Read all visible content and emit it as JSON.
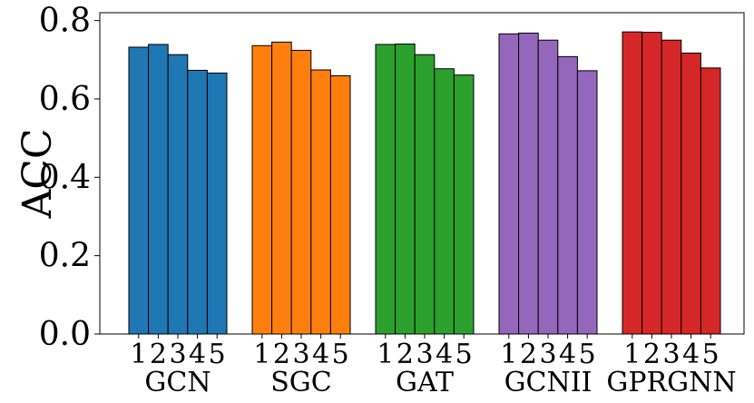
{
  "chart_data": {
    "type": "bar",
    "title": "",
    "xlabel": "",
    "ylabel": "ACC",
    "ylim": [
      0.0,
      0.82
    ],
    "yticks": [
      "0.0",
      "0.2",
      "0.4",
      "0.6",
      "0.8"
    ],
    "ytick_values": [
      0.0,
      0.2,
      0.4,
      0.6,
      0.8
    ],
    "grid": false,
    "legend": "none",
    "bar_labels": [
      "1",
      "2",
      "3",
      "4",
      "5"
    ],
    "groups": [
      {
        "name": "GCN",
        "color": "#1f77b4",
        "values": [
          0.732,
          0.739,
          0.713,
          0.673,
          0.666
        ]
      },
      {
        "name": "SGC",
        "color": "#ff7f0e",
        "values": [
          0.736,
          0.745,
          0.724,
          0.674,
          0.659
        ]
      },
      {
        "name": "GAT",
        "color": "#2ca02c",
        "values": [
          0.739,
          0.74,
          0.713,
          0.677,
          0.661
        ]
      },
      {
        "name": "GCNII",
        "color": "#9467bd",
        "values": [
          0.766,
          0.768,
          0.75,
          0.708,
          0.672
        ]
      },
      {
        "name": "GPRGNN",
        "color": "#d62728",
        "values": [
          0.771,
          0.77,
          0.75,
          0.717,
          0.679
        ]
      }
    ]
  }
}
